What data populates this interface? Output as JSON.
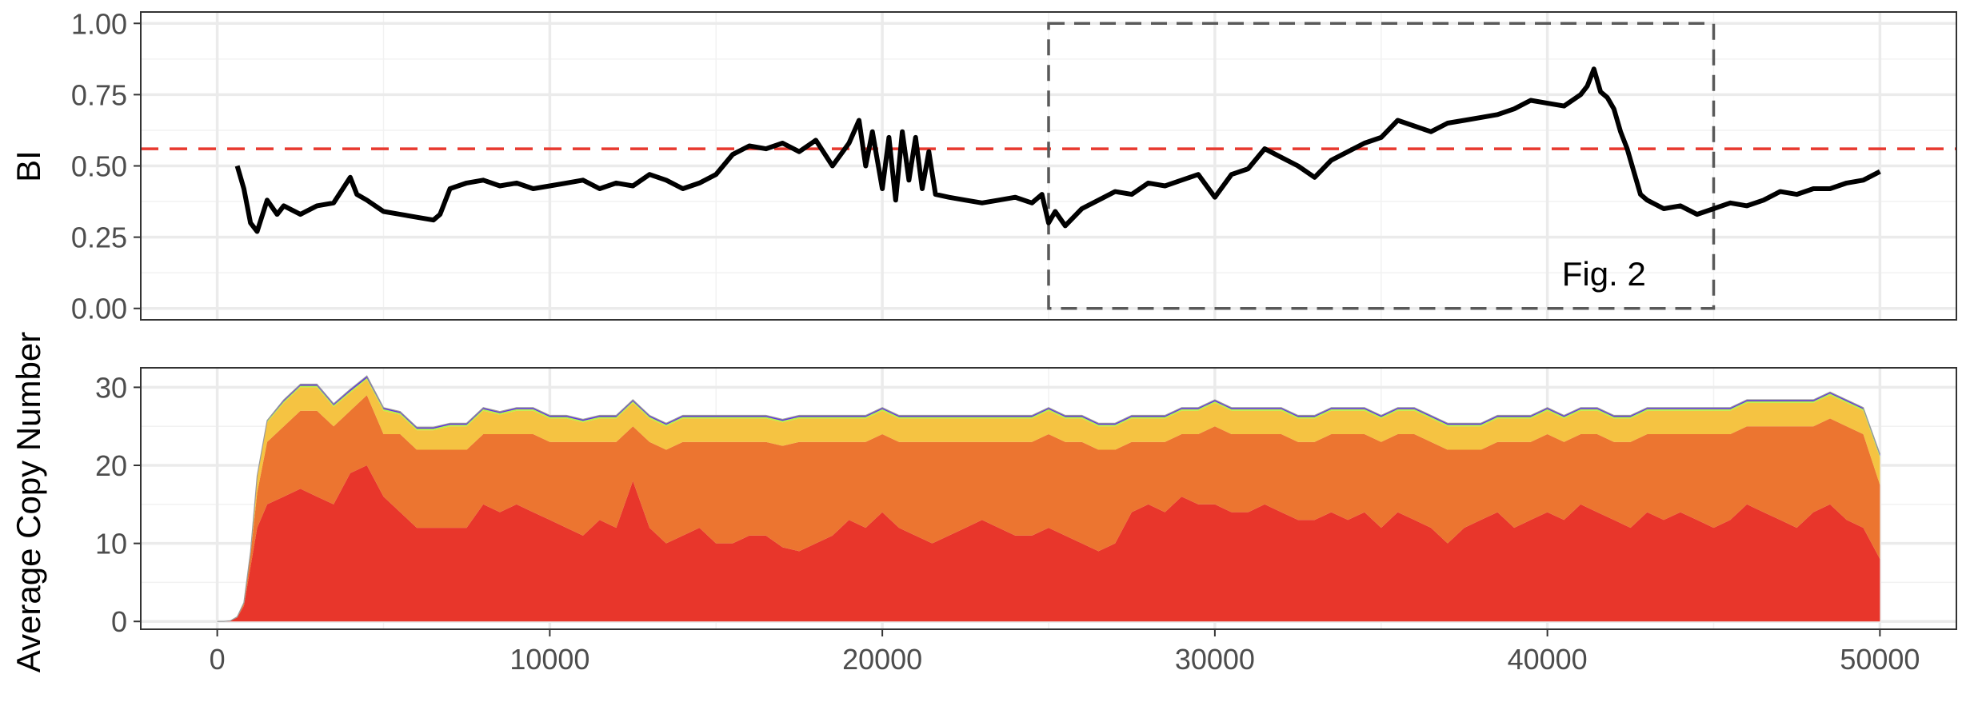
{
  "chart_data": [
    {
      "type": "line",
      "ylabel": "BI",
      "xlim": [
        -2300,
        52300
      ],
      "ylim": [
        -0.04,
        1.04
      ],
      "x_ticks": [
        0,
        10000,
        20000,
        30000,
        40000,
        50000
      ],
      "y_ticks": [
        {
          "value": 0.0,
          "label": "0.00"
        },
        {
          "value": 0.25,
          "label": "0.25"
        },
        {
          "value": 0.5,
          "label": "0.50"
        },
        {
          "value": 0.75,
          "label": "0.75"
        },
        {
          "value": 1.0,
          "label": "1.00"
        }
      ],
      "grid": true,
      "threshold": 0.56,
      "threshold_color": "#e8392f",
      "line_color": "#000000",
      "annotation": {
        "text": "Fig. 2",
        "x": 41700,
        "y": 0.08
      },
      "highlight_box": {
        "x": [
          25000,
          45000
        ],
        "y": [
          0.0,
          1.0
        ]
      },
      "series": [
        {
          "x": [
            600,
            800,
            1000,
            1200,
            1500,
            1800,
            2000,
            2500,
            3000,
            3500,
            4000,
            4200,
            4500,
            5000,
            5500,
            6000,
            6500,
            6700,
            7000,
            7500,
            8000,
            8500,
            9000,
            9500,
            10000,
            10500,
            11000,
            11500,
            12000,
            12500,
            13000,
            13500,
            14000,
            14500,
            15000,
            15500,
            16000,
            16500,
            17000,
            17500,
            18000,
            18500,
            19000,
            19300,
            19500,
            19700,
            20000,
            20200,
            20400,
            20600,
            20800,
            21000,
            21200,
            21400,
            21600,
            22000,
            22500,
            23000,
            23500,
            24000,
            24500,
            24800,
            25000,
            25200,
            25500,
            26000,
            26500,
            27000,
            27500,
            28000,
            28500,
            29000,
            29500,
            30000,
            30500,
            31000,
            31500,
            32000,
            32500,
            33000,
            33500,
            34000,
            34500,
            35000,
            35500,
            36000,
            36500,
            37000,
            37500,
            38000,
            38500,
            39000,
            39500,
            40000,
            40500,
            41000,
            41200,
            41400,
            41600,
            41800,
            42000,
            42200,
            42400,
            42600,
            42800,
            43000,
            43500,
            44000,
            44500,
            45000,
            45500,
            46000,
            46500,
            47000,
            47500,
            48000,
            48500,
            49000,
            49500,
            50000
          ],
          "y": [
            0.5,
            0.42,
            0.3,
            0.27,
            0.38,
            0.33,
            0.36,
            0.33,
            0.36,
            0.37,
            0.46,
            0.4,
            0.38,
            0.34,
            0.33,
            0.32,
            0.31,
            0.33,
            0.42,
            0.44,
            0.45,
            0.43,
            0.44,
            0.42,
            0.43,
            0.44,
            0.45,
            0.42,
            0.44,
            0.43,
            0.47,
            0.45,
            0.42,
            0.44,
            0.47,
            0.54,
            0.57,
            0.56,
            0.58,
            0.55,
            0.59,
            0.5,
            0.58,
            0.66,
            0.5,
            0.62,
            0.42,
            0.6,
            0.38,
            0.62,
            0.45,
            0.6,
            0.42,
            0.55,
            0.4,
            0.39,
            0.38,
            0.37,
            0.38,
            0.39,
            0.37,
            0.4,
            0.3,
            0.34,
            0.29,
            0.35,
            0.38,
            0.41,
            0.4,
            0.44,
            0.43,
            0.45,
            0.47,
            0.39,
            0.47,
            0.49,
            0.56,
            0.53,
            0.5,
            0.46,
            0.52,
            0.55,
            0.58,
            0.6,
            0.66,
            0.64,
            0.62,
            0.65,
            0.66,
            0.67,
            0.68,
            0.7,
            0.73,
            0.72,
            0.71,
            0.75,
            0.78,
            0.84,
            0.76,
            0.74,
            0.7,
            0.62,
            0.56,
            0.48,
            0.4,
            0.38,
            0.35,
            0.36,
            0.33,
            0.35,
            0.37,
            0.36,
            0.38,
            0.41,
            0.4,
            0.42,
            0.42,
            0.44,
            0.45,
            0.48
          ]
        }
      ]
    },
    {
      "type": "area",
      "stacked": true,
      "ylabel": "Average Copy Number",
      "xlim": [
        -2300,
        52300
      ],
      "ylim": [
        -1,
        32.5
      ],
      "x_ticks": [
        0,
        10000,
        20000,
        30000,
        40000,
        50000
      ],
      "y_ticks": [
        0,
        10,
        20,
        30
      ],
      "grid": true,
      "x": [
        0,
        200,
        400,
        600,
        800,
        1000,
        1200,
        1500,
        2000,
        2500,
        3000,
        3500,
        4000,
        4500,
        5000,
        5500,
        6000,
        6500,
        7000,
        7500,
        8000,
        8500,
        9000,
        9500,
        10000,
        10500,
        11000,
        11500,
        12000,
        12500,
        13000,
        13500,
        14000,
        14500,
        15000,
        15500,
        16000,
        16500,
        17000,
        17500,
        18000,
        18500,
        19000,
        19500,
        20000,
        20500,
        21000,
        21500,
        22000,
        22500,
        23000,
        23500,
        24000,
        24500,
        25000,
        25500,
        26000,
        26500,
        27000,
        27500,
        28000,
        28500,
        29000,
        29500,
        30000,
        30500,
        31000,
        31500,
        32000,
        32500,
        33000,
        33500,
        34000,
        34500,
        35000,
        35500,
        36000,
        36500,
        37000,
        37500,
        38000,
        38500,
        39000,
        39500,
        40000,
        40500,
        41000,
        41500,
        42000,
        42500,
        43000,
        43500,
        44000,
        44500,
        45000,
        45500,
        46000,
        46500,
        47000,
        47500,
        48000,
        48500,
        49000,
        49500,
        50000
      ],
      "series": [
        {
          "color": "#e8362b",
          "values": [
            0,
            0,
            0.1,
            0.5,
            2,
            7,
            12,
            15,
            16,
            17,
            16,
            15,
            19,
            20,
            16,
            14,
            12,
            12,
            12,
            12,
            15,
            14,
            15,
            14,
            13,
            12,
            11,
            13,
            12,
            18,
            12,
            10,
            11,
            12,
            10,
            10,
            11,
            11,
            9.5,
            9,
            10,
            11,
            13,
            12,
            14,
            12,
            11,
            10,
            11,
            12,
            13,
            12,
            11,
            11,
            12,
            11,
            10,
            9,
            10,
            14,
            15,
            14,
            16,
            15,
            15,
            14,
            14,
            15,
            14,
            13,
            13,
            14,
            13,
            14,
            12,
            14,
            13,
            12,
            10,
            12,
            13,
            14,
            12,
            13,
            14,
            13,
            15,
            14,
            13,
            12,
            14,
            13,
            14,
            13,
            12,
            13,
            15,
            14,
            13,
            12,
            14,
            15,
            13,
            12,
            8
          ]
        },
        {
          "color": "#ec7530",
          "values": [
            0,
            0,
            0,
            0.1,
            0.3,
            1.5,
            4.5,
            8,
            9,
            10,
            11,
            10,
            8,
            9,
            8,
            10,
            10,
            10,
            10,
            10,
            9,
            10,
            9,
            10,
            10,
            11,
            12,
            10,
            11,
            7,
            11,
            12,
            12,
            11,
            13,
            13,
            12,
            12,
            13,
            14,
            13,
            12,
            10,
            11,
            10,
            11,
            12,
            13,
            12,
            11,
            10,
            11,
            12,
            12,
            12,
            12,
            13,
            13,
            12,
            9,
            8,
            9,
            8,
            9,
            10,
            10,
            10,
            9,
            10,
            10,
            10,
            10,
            11,
            10,
            11,
            10,
            11,
            11,
            12,
            10,
            9,
            9,
            11,
            10,
            10,
            10,
            9,
            10,
            10,
            11,
            10,
            11,
            10,
            11,
            12,
            11,
            10,
            11,
            12,
            13,
            11,
            11,
            12,
            12,
            9.5
          ]
        },
        {
          "color": "#f5c342",
          "values": [
            0,
            0,
            0,
            0,
            0.1,
            0.4,
            2,
            2.5,
            3,
            3,
            3,
            2.5,
            2.3,
            2,
            3,
            2.5,
            2.5,
            2.5,
            3,
            3,
            3,
            2.5,
            3,
            3,
            3,
            3,
            2.5,
            3,
            3,
            3,
            3,
            3,
            3,
            3,
            3,
            3,
            3,
            3,
            3,
            3,
            3,
            3,
            3,
            3,
            3,
            3,
            3,
            3,
            3,
            3,
            3,
            3,
            3,
            3,
            3,
            3,
            3,
            3,
            3,
            3,
            3,
            3,
            3,
            3,
            3,
            3,
            3,
            3,
            3,
            3,
            3,
            3,
            3,
            3,
            3,
            3,
            3,
            3,
            3,
            3,
            3,
            3,
            3,
            3,
            3,
            3,
            3,
            3,
            3,
            3,
            3,
            3,
            3,
            3,
            3,
            3,
            3,
            3,
            3,
            3,
            3,
            3,
            3,
            3,
            3.5
          ]
        },
        {
          "color": "#b5f244",
          "values": [
            0,
            0,
            0,
            0,
            0,
            0,
            0.1,
            0.15,
            0.2,
            0.2,
            0.2,
            0.2,
            0.2,
            0.2,
            0.2,
            0.2,
            0.2,
            0.2,
            0.2,
            0.2,
            0.2,
            0.2,
            0.2,
            0.2,
            0.2,
            0.2,
            0.2,
            0.2,
            0.2,
            0.2,
            0.2,
            0.2,
            0.2,
            0.2,
            0.2,
            0.2,
            0.2,
            0.2,
            0.2,
            0.2,
            0.2,
            0.2,
            0.2,
            0.2,
            0.2,
            0.2,
            0.2,
            0.2,
            0.2,
            0.2,
            0.2,
            0.2,
            0.2,
            0.2,
            0.2,
            0.2,
            0.2,
            0.2,
            0.2,
            0.2,
            0.2,
            0.2,
            0.2,
            0.2,
            0.2,
            0.2,
            0.2,
            0.2,
            0.2,
            0.2,
            0.2,
            0.2,
            0.2,
            0.2,
            0.2,
            0.2,
            0.2,
            0.2,
            0.2,
            0.2,
            0.2,
            0.2,
            0.2,
            0.2,
            0.2,
            0.2,
            0.2,
            0.2,
            0.2,
            0.2,
            0.2,
            0.2,
            0.2,
            0.2,
            0.2,
            0.2,
            0.2,
            0.2,
            0.2,
            0.2,
            0.2,
            0.2,
            0.2,
            0.2,
            0.2
          ]
        },
        {
          "color": "#5b2ee6",
          "values": [
            0,
            0,
            0,
            0,
            0,
            0,
            0.05,
            0.1,
            0.2,
            0.2,
            0.2,
            0.2,
            0.25,
            0.25,
            0.2,
            0.2,
            0.2,
            0.2,
            0.2,
            0.2,
            0.2,
            0.2,
            0.2,
            0.2,
            0.2,
            0.2,
            0.2,
            0.2,
            0.2,
            0.2,
            0.2,
            0.2,
            0.2,
            0.2,
            0.2,
            0.2,
            0.2,
            0.2,
            0.2,
            0.2,
            0.2,
            0.2,
            0.2,
            0.2,
            0.2,
            0.2,
            0.2,
            0.2,
            0.2,
            0.2,
            0.2,
            0.2,
            0.2,
            0.2,
            0.2,
            0.2,
            0.2,
            0.2,
            0.2,
            0.2,
            0.2,
            0.2,
            0.2,
            0.2,
            0.2,
            0.2,
            0.2,
            0.2,
            0.2,
            0.2,
            0.2,
            0.2,
            0.2,
            0.2,
            0.2,
            0.2,
            0.2,
            0.2,
            0.2,
            0.2,
            0.2,
            0.2,
            0.2,
            0.2,
            0.2,
            0.2,
            0.2,
            0.2,
            0.2,
            0.2,
            0.2,
            0.2,
            0.2,
            0.2,
            0.2,
            0.2,
            0.2,
            0.2,
            0.2,
            0.2,
            0.2,
            0.2,
            0.2,
            0.2,
            0.25
          ]
        }
      ]
    }
  ]
}
